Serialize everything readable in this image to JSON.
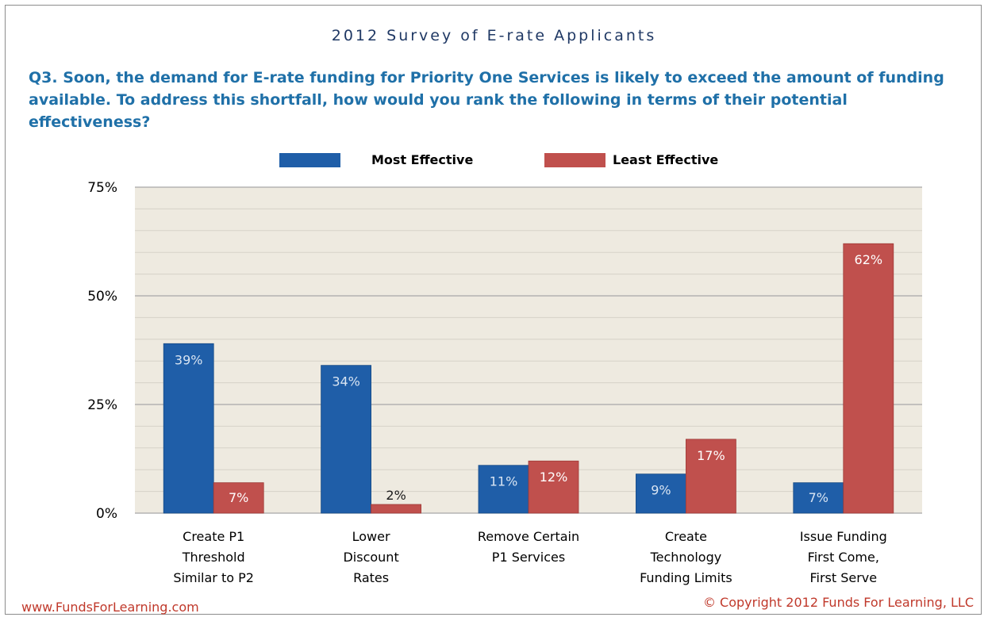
{
  "header": {
    "survey_title": "2012 Survey of E-rate Applicants",
    "question": "Q3. Soon, the demand for E-rate funding for Priority One Services is likely to exceed the amount of funding available. To address this shortfall, how would you rank the following in terms of their potential effectiveness?"
  },
  "footer": {
    "website": "www.FundsForLearning.com",
    "copyright": "© Copyright 2012  Funds For Learning, LLC"
  },
  "colors": {
    "most_effective": "#1f5ea8",
    "least_effective": "#c0504d",
    "plot_background": "#eeeae0",
    "gridline": "#c8c8c8",
    "question_text": "#1f70a8",
    "footer_text": "#c0392b"
  },
  "chart_data": {
    "type": "bar",
    "title": "",
    "xlabel": "",
    "ylabel": "",
    "ylim": [
      0,
      75
    ],
    "yticks": [
      "0%",
      "25%",
      "50%",
      "75%"
    ],
    "grid": true,
    "legend_position": "top",
    "categories": [
      [
        "Create P1",
        "Threshold",
        "Similar to P2"
      ],
      [
        "Lower",
        "Discount",
        "Rates"
      ],
      [
        "Remove Certain",
        "P1 Services"
      ],
      [
        "Create",
        "Technology",
        "Funding Limits"
      ],
      [
        "Issue Funding",
        "First Come,",
        "First Serve"
      ]
    ],
    "series": [
      {
        "name": "Most Effective",
        "values": [
          39,
          34,
          11,
          9,
          7
        ],
        "labels": [
          "39%",
          "34%",
          "11%",
          "9%",
          "7%"
        ]
      },
      {
        "name": "Least Effective",
        "values": [
          7,
          2,
          12,
          17,
          62
        ],
        "labels": [
          "7%",
          "2%",
          "12%",
          "17%",
          "62%"
        ]
      }
    ]
  }
}
